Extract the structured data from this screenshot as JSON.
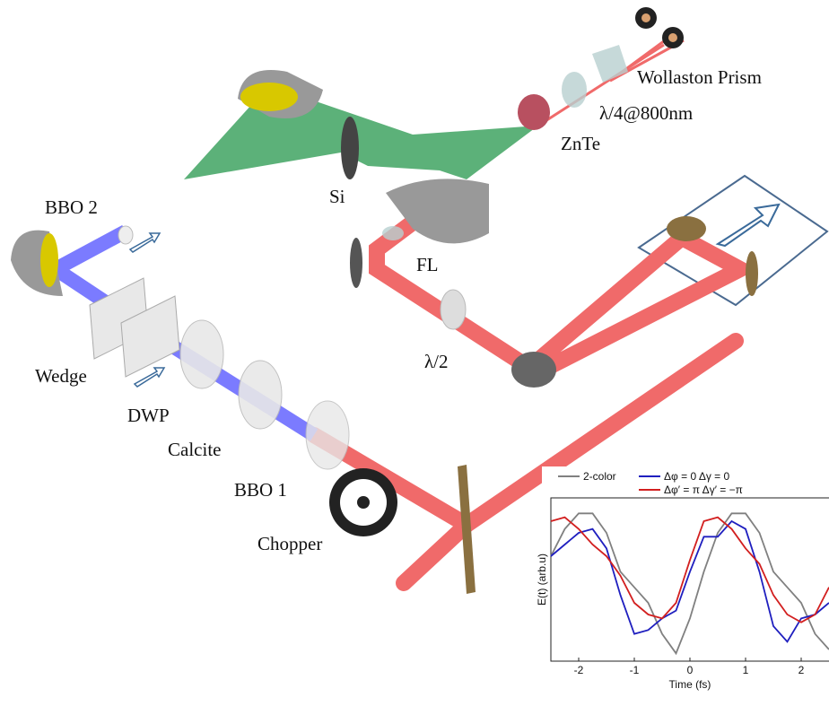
{
  "labels": [
    "Wollaston Prism",
    "λ/4@800nm",
    "ZnTe",
    "Si",
    "BBO 2",
    "FL",
    "λ/2",
    "Wedge",
    "DWP",
    "Calcite",
    "BBO 1",
    "Chopper"
  ],
  "chart_data": {
    "type": "line",
    "xlabel": "Time (fs)",
    "ylabel": "E(t) (arb.u)",
    "x": [
      -2.5,
      -2.25,
      -2,
      -1.75,
      -1.5,
      -1.25,
      -1,
      -0.75,
      -0.5,
      -0.25,
      0,
      0.25,
      0.5,
      0.75,
      1,
      1.25,
      1.5,
      1.75,
      2,
      2.25,
      2.5
    ],
    "series": [
      {
        "name": "2-color",
        "color": "#808080",
        "values": [
          0.3,
          0.65,
          0.85,
          0.85,
          0.6,
          0.1,
          -0.1,
          -0.3,
          -0.7,
          -0.95,
          -0.5,
          0.1,
          0.6,
          0.85,
          0.85,
          0.6,
          0.1,
          -0.1,
          -0.3,
          -0.7,
          -0.9
        ]
      },
      {
        "name": "Δφ = 0  Δγ = 0",
        "color": "#1f1fbf",
        "values": [
          0.3,
          0.45,
          0.6,
          0.65,
          0.4,
          -0.2,
          -0.7,
          -0.65,
          -0.5,
          -0.4,
          0.1,
          0.55,
          0.55,
          0.75,
          0.65,
          0.1,
          -0.6,
          -0.8,
          -0.5,
          -0.45,
          -0.3
        ]
      },
      {
        "name": "Δφ′ = π Δγ′ = −π",
        "color": "#d21f1f",
        "values": [
          0.75,
          0.8,
          0.65,
          0.45,
          0.3,
          0.05,
          -0.3,
          -0.45,
          -0.5,
          -0.3,
          0.25,
          0.75,
          0.8,
          0.65,
          0.4,
          0.2,
          -0.2,
          -0.45,
          -0.55,
          -0.45,
          -0.1
        ]
      }
    ],
    "xlim": [
      -2.5,
      2.5
    ],
    "xticks": [
      -2,
      -1,
      0,
      1,
      2
    ],
    "ylim": [
      -1.05,
      1.05
    ]
  }
}
